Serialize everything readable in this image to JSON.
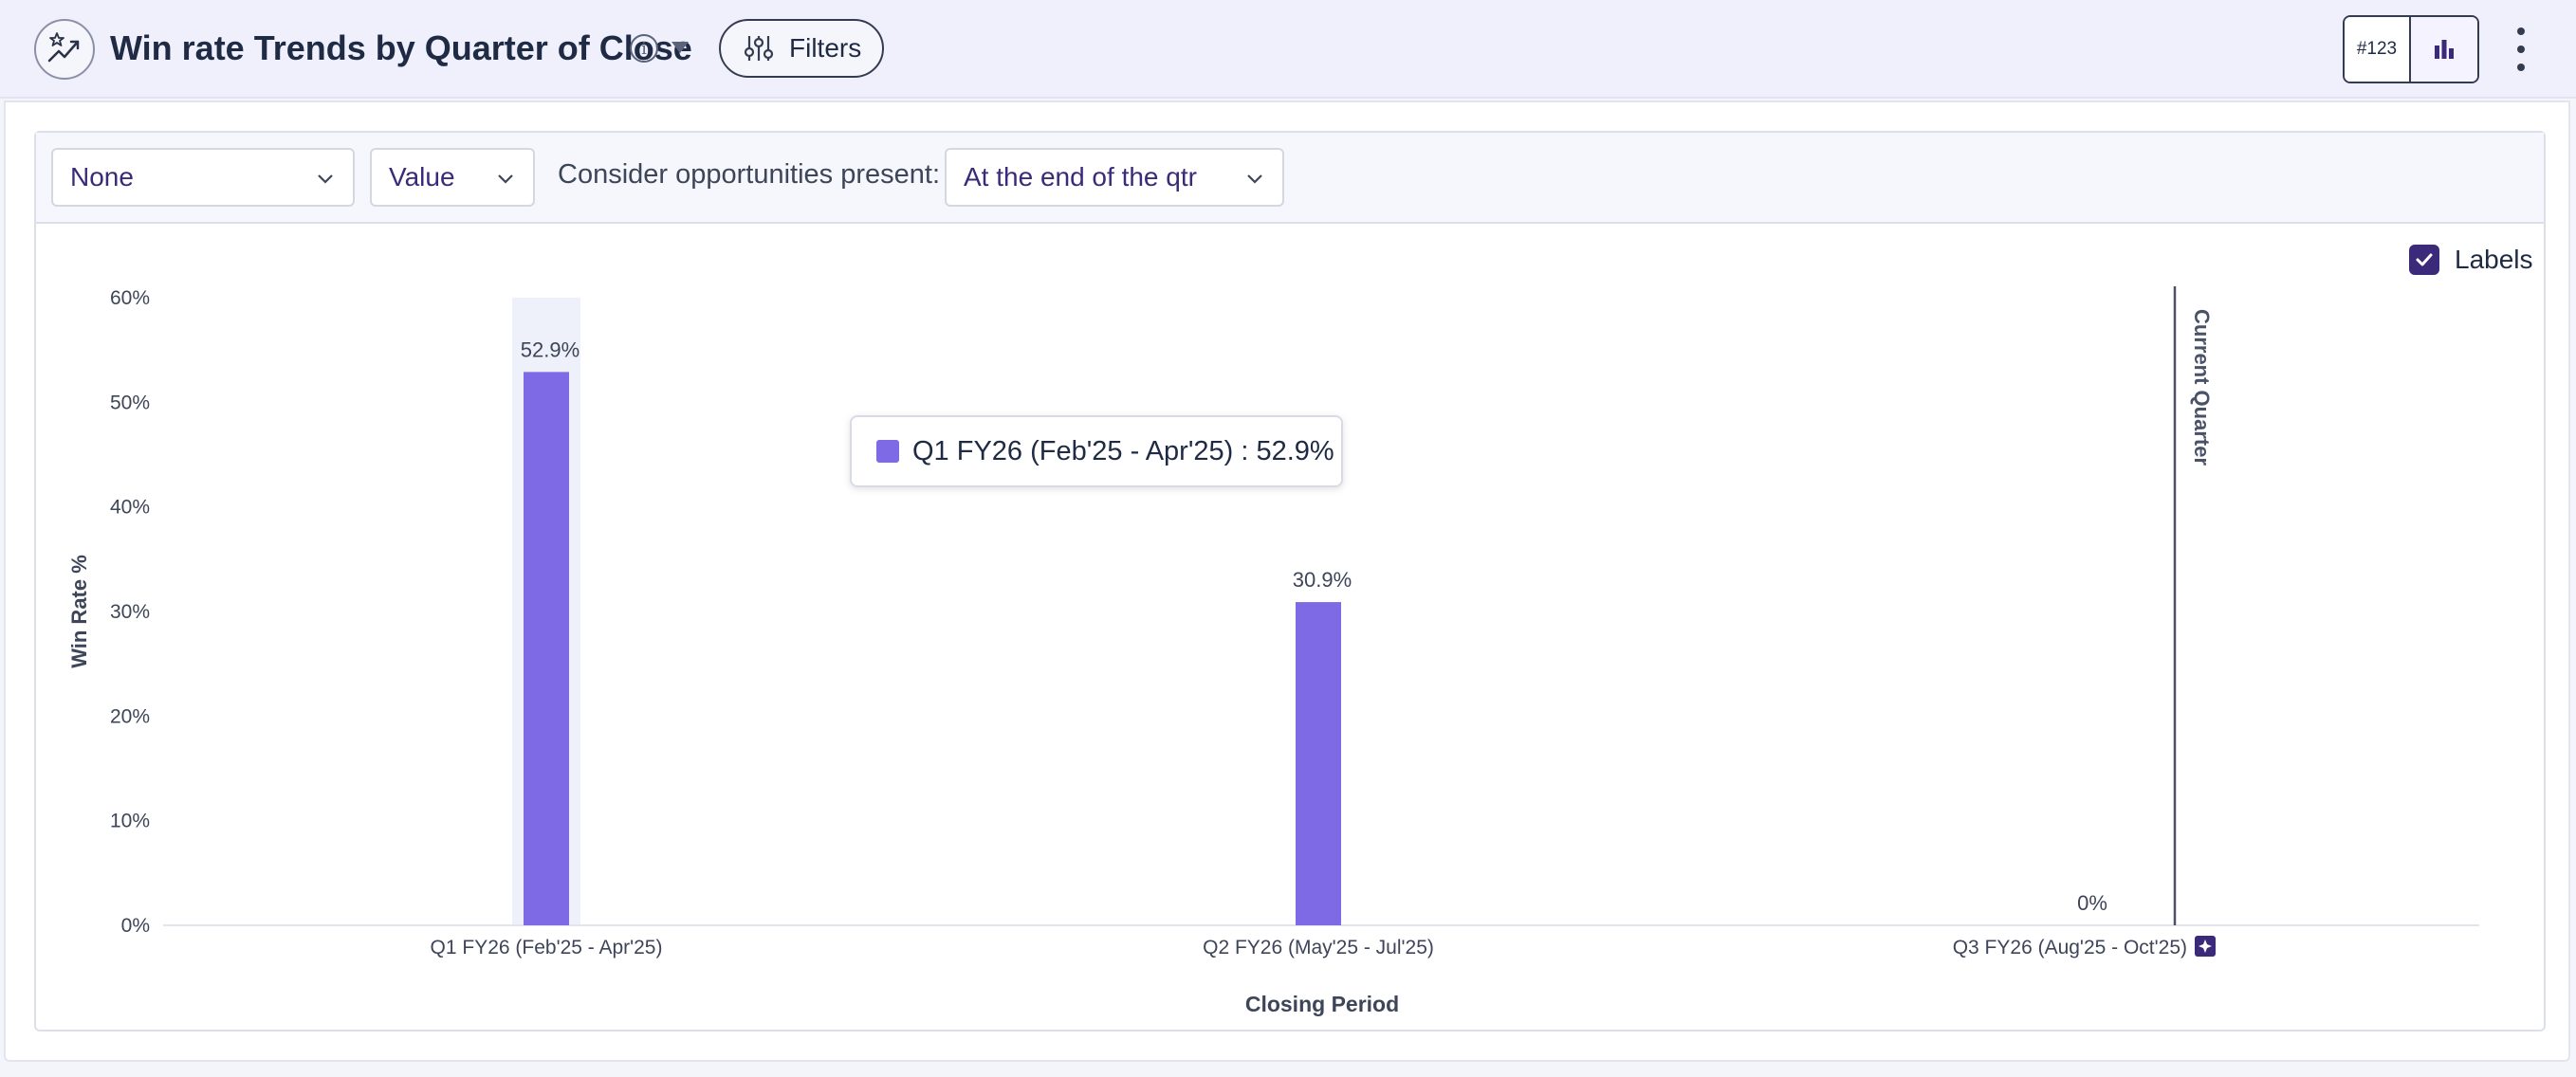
{
  "header": {
    "title": "Win rate Trends by Quarter of Close",
    "filters_label": "Filters",
    "toggle_number_label": "#123"
  },
  "toolbar": {
    "group_by": "None",
    "measure": "Value",
    "consider_label": "Consider opportunities present:",
    "consider_value": "At the end of the qtr"
  },
  "labels_toggle": {
    "label": "Labels",
    "checked": true
  },
  "tooltip": {
    "text": "Q1 FY26 (Feb'25 - Apr'25) : 52.9%"
  },
  "colors": {
    "bar": "#7f6ae6",
    "accent": "#3b2a7a",
    "hover_band": "#eef0fa"
  },
  "chart_data": {
    "type": "bar",
    "categories": [
      "Q1 FY26 (Feb'25 - Apr'25)",
      "Q2 FY26 (May'25 - Jul'25)",
      "Q3 FY26 (Aug'25 - Oct'25)"
    ],
    "values": [
      52.9,
      30.9,
      0
    ],
    "data_labels": [
      "52.9%",
      "30.9%",
      "0%"
    ],
    "xlabel": "Closing Period",
    "ylabel": "Win Rate %",
    "ylim": [
      0,
      60
    ],
    "yticks": [
      0,
      10,
      20,
      30,
      40,
      50,
      60
    ],
    "ytick_labels": [
      "0%",
      "10%",
      "20%",
      "30%",
      "40%",
      "50%",
      "60%"
    ],
    "grid": false,
    "highlighted_category": "Q1 FY26 (Feb'25 - Apr'25)",
    "reference_line": {
      "category": "Q3 FY26 (Aug'25 - Oct'25)",
      "label": "Current Quarter"
    }
  }
}
